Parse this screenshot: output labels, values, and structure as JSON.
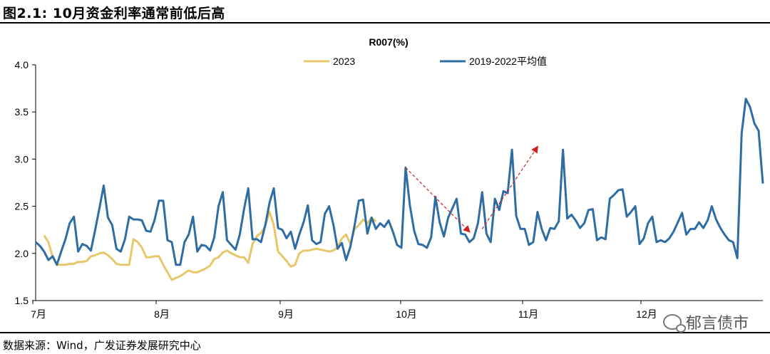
{
  "figure_title": "图2.1:  10月资金利率通常前低后高",
  "source": "数据来源：Wind，广发证券发展研究中心",
  "watermark": "郁言债市",
  "chart_data": {
    "type": "line",
    "title": "R007(%)",
    "xlabel": "",
    "ylabel": "",
    "ylim": [
      1.5,
      4.0
    ],
    "yticks": [
      "1.5",
      "2.0",
      "2.5",
      "3.0",
      "3.5",
      "4.0"
    ],
    "xticks": [
      "7月",
      "8月",
      "9月",
      "10月",
      "11月",
      "12月"
    ],
    "legend_position": "top",
    "grid": false,
    "colors": {
      "s2023": "#E8C76A",
      "avg": "#2E6DA4",
      "arrow": "#D11F1F"
    },
    "series": [
      {
        "name": "2023",
        "values": [
          2.19,
          2.12,
          1.96,
          1.88,
          1.88,
          1.88,
          1.89,
          1.89,
          1.91,
          1.91,
          1.92,
          1.97,
          1.98,
          2.0,
          2.01,
          1.98,
          1.94,
          1.89,
          1.88,
          1.88,
          1.88,
          2.15,
          2.12,
          2.06,
          1.96,
          1.96,
          1.97,
          1.97,
          1.88,
          1.8,
          1.72,
          1.74,
          1.76,
          1.79,
          1.82,
          1.8,
          1.8,
          1.82,
          1.84,
          1.87,
          1.94,
          1.96,
          2.01,
          2.03,
          2.0,
          1.98,
          1.96,
          1.96,
          1.9,
          2.1,
          2.18,
          2.22,
          2.29,
          2.44,
          2.3,
          2.02,
          1.97,
          1.92,
          1.86,
          1.88,
          2.0,
          2.03,
          2.03,
          2.04,
          2.05,
          2.04,
          2.03,
          2.02,
          2.03,
          2.07,
          2.16,
          2.2,
          2.1,
          2.26,
          2.3,
          2.36,
          2.32,
          2.38,
          2.34
        ]
      },
      {
        "name": "2019-2022平均值",
        "values": [
          2.12,
          2.08,
          2.02,
          1.93,
          1.97,
          1.88,
          2.02,
          2.15,
          2.32,
          2.39,
          2.02,
          2.1,
          2.08,
          2.03,
          2.25,
          2.48,
          2.72,
          2.38,
          2.3,
          2.05,
          2.02,
          2.15,
          2.39,
          2.36,
          2.36,
          2.35,
          2.24,
          2.23,
          2.36,
          2.56,
          2.56,
          2.14,
          2.12,
          1.88,
          1.88,
          2.12,
          2.2,
          2.39,
          2.02,
          2.09,
          2.08,
          2.03,
          2.17,
          2.5,
          2.65,
          2.14,
          2.09,
          2.04,
          2.2,
          2.47,
          2.69,
          2.15,
          2.15,
          2.12,
          2.3,
          2.54,
          2.69,
          2.27,
          2.25,
          2.16,
          2.23,
          2.05,
          2.2,
          2.33,
          2.51,
          2.14,
          2.1,
          2.12,
          2.42,
          2.5,
          2.31,
          2.05,
          2.11,
          1.93,
          2.07,
          2.3,
          2.56,
          2.57,
          2.21,
          2.38,
          2.26,
          2.32,
          2.28,
          2.35,
          2.23,
          2.09,
          2.06,
          2.91,
          2.51,
          2.24,
          2.1,
          2.09,
          2.06,
          2.17,
          2.6,
          2.33,
          2.18,
          2.38,
          2.48,
          2.58,
          2.21,
          2.2,
          2.12,
          2.16,
          2.32,
          2.65,
          2.21,
          2.12,
          2.58,
          2.46,
          2.66,
          2.64,
          3.1,
          2.4,
          2.26,
          2.26,
          2.09,
          2.12,
          2.44,
          2.26,
          2.14,
          2.27,
          2.26,
          2.34,
          3.1,
          2.37,
          2.41,
          2.35,
          2.27,
          2.32,
          2.46,
          2.47,
          2.14,
          2.17,
          2.15,
          2.58,
          2.62,
          2.67,
          2.68,
          2.39,
          2.44,
          2.5,
          2.1,
          2.16,
          2.32,
          2.39,
          2.12,
          2.14,
          2.12,
          2.16,
          2.23,
          2.33,
          2.43,
          2.2,
          2.26,
          2.26,
          2.33,
          2.27,
          2.35,
          2.5,
          2.36,
          2.27,
          2.2,
          2.14,
          2.12,
          1.95,
          3.27,
          3.64,
          3.55,
          3.38,
          3.3,
          2.74
        ]
      }
    ],
    "annotations": [
      {
        "type": "arrow",
        "from": [
          87,
          2.91
        ],
        "to": [
          102,
          2.23
        ]
      },
      {
        "type": "arrow",
        "from": [
          105,
          2.26
        ],
        "to": [
          118,
          3.13
        ]
      }
    ]
  }
}
